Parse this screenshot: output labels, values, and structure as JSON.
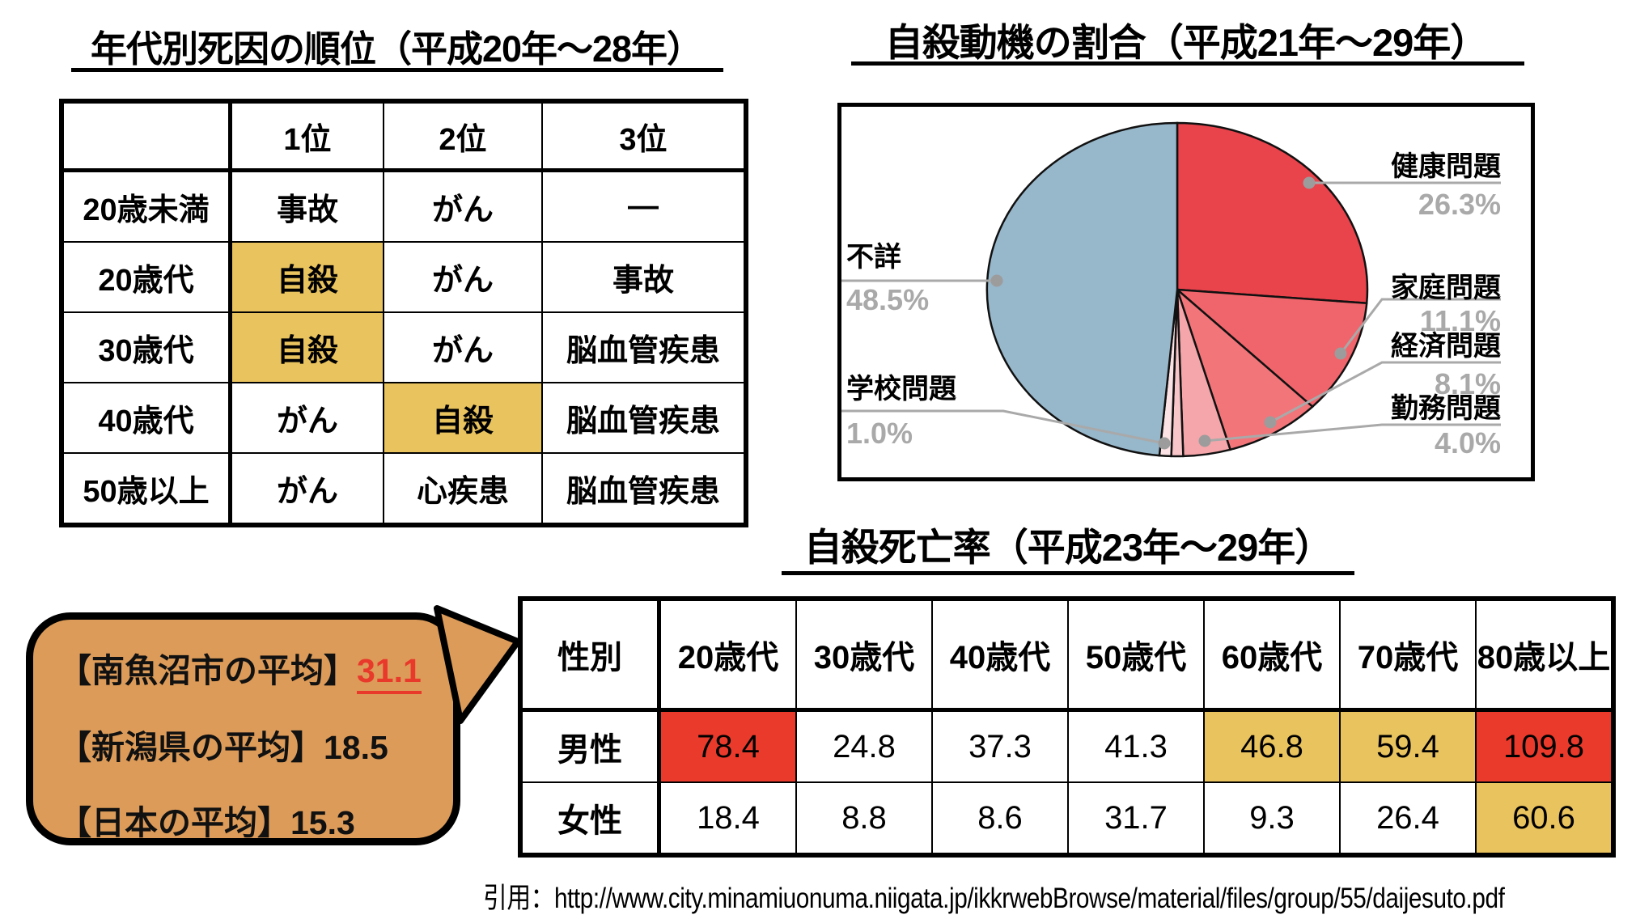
{
  "death_rank": {
    "title": "年代別死因の順位（平成20年～28年）",
    "headers": [
      "",
      "1位",
      "2位",
      "3位"
    ],
    "highlight_color": "#E9C35E",
    "rows": [
      {
        "label": "20歳未満",
        "cells": [
          {
            "text": "事故"
          },
          {
            "text": "がん"
          },
          {
            "text": "—"
          }
        ]
      },
      {
        "label": "20歳代",
        "cells": [
          {
            "text": "自殺",
            "highlight": true
          },
          {
            "text": "がん"
          },
          {
            "text": "事故"
          }
        ]
      },
      {
        "label": "30歳代",
        "cells": [
          {
            "text": "自殺",
            "highlight": true
          },
          {
            "text": "がん"
          },
          {
            "text": "脳血管疾患"
          }
        ]
      },
      {
        "label": "40歳代",
        "cells": [
          {
            "text": "がん"
          },
          {
            "text": "自殺",
            "highlight": true
          },
          {
            "text": "脳血管疾患"
          }
        ]
      },
      {
        "label": "50歳以上",
        "cells": [
          {
            "text": "がん"
          },
          {
            "text": "心疾患"
          },
          {
            "text": "脳血管疾患"
          }
        ]
      }
    ]
  },
  "chart_data": {
    "type": "pie",
    "title": "自殺動機の割合（平成21年～29年）",
    "start_angle": "top",
    "direction": "clockwise",
    "legend_position": "callout-labels",
    "slices": [
      {
        "label": "健康問題",
        "value": 26.3,
        "pct_label": "26.3%",
        "color": "#E9434C"
      },
      {
        "label": "家庭問題",
        "value": 11.1,
        "pct_label": "11.1%",
        "color": "#F0656B"
      },
      {
        "label": "経済問題",
        "value": 8.1,
        "pct_label": "8.1%",
        "color": "#F2757A"
      },
      {
        "label": "勤務問題",
        "value": 4.0,
        "pct_label": "4.0%",
        "color": "#F5A6AA"
      },
      {
        "label": "",
        "value": 1.0,
        "pct_label": "",
        "color": "#F8C6C9"
      },
      {
        "label": "学校問題",
        "value": 1.0,
        "pct_label": "1.0%",
        "color": "#FBE2E4"
      },
      {
        "label": "不詳",
        "value": 48.5,
        "pct_label": "48.5%",
        "color": "#97B7CA"
      }
    ]
  },
  "mortality": {
    "title": "自殺死亡率（平成23年～29年）",
    "headers": [
      "性別",
      "20歳代",
      "30歳代",
      "40歳代",
      "50歳代",
      "60歳代",
      "70歳代",
      "80歳以上"
    ],
    "palette": {
      "red": "#EA3A2B",
      "yellow": "#E9C35E"
    },
    "rows": [
      {
        "label": "男性",
        "values": [
          {
            "v": "78.4",
            "bg": "red"
          },
          {
            "v": "24.8"
          },
          {
            "v": "37.3"
          },
          {
            "v": "41.3"
          },
          {
            "v": "46.8",
            "bg": "yellow"
          },
          {
            "v": "59.4",
            "bg": "yellow"
          },
          {
            "v": "109.8",
            "bg": "red"
          }
        ]
      },
      {
        "label": "女性",
        "values": [
          {
            "v": "18.4"
          },
          {
            "v": "8.8"
          },
          {
            "v": "8.6"
          },
          {
            "v": "31.7"
          },
          {
            "v": "9.3"
          },
          {
            "v": "26.4"
          },
          {
            "v": "60.6",
            "bg": "yellow"
          }
        ]
      }
    ]
  },
  "bubble": {
    "fill": "#DC9B59",
    "lines": [
      {
        "prefix": "【南魚沼市の平均】",
        "value": "31.1"
      },
      {
        "prefix": "【新潟県の平均】",
        "value": "18.5"
      },
      {
        "prefix": "【日本の平均】",
        "value": "15.3"
      }
    ]
  },
  "citation": "引用：http://www.city.minamiuonuma.niigata.jp/ikkrwebBrowse/material/files/group/55/daijesuto.pdf"
}
